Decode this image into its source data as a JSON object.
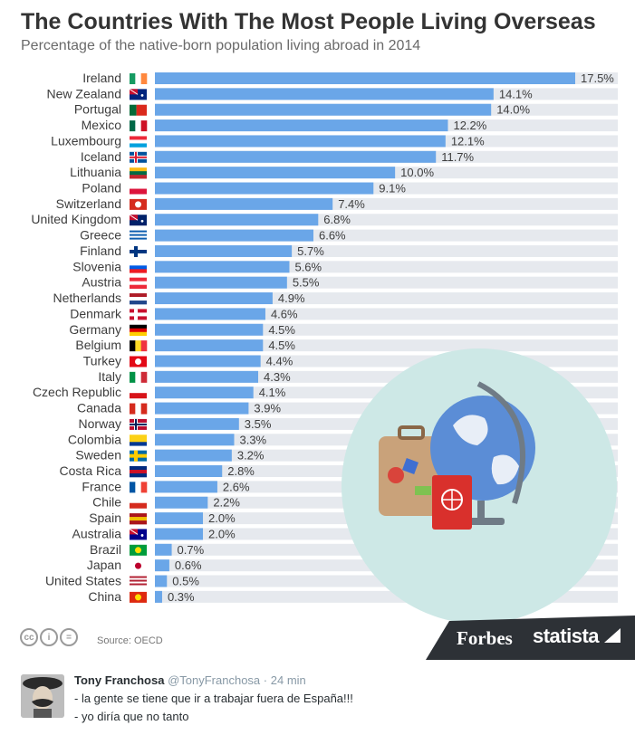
{
  "infographic": {
    "title": "The Countries With The Most People Living Overseas",
    "subtitle": "Percentage of the native-born population living abroad in 2014",
    "source": "Source: OECD",
    "brand_forbes": "Forbes",
    "brand_statista": "statista",
    "license_icons": [
      "cc",
      "i",
      "="
    ],
    "colors": {
      "bar": "#6aa6e8",
      "track": "#e6e9ee",
      "label": "#3d3d3d",
      "band": "#2d3136",
      "illustration_bg": "#cde8e6"
    }
  },
  "chart_data": {
    "type": "bar",
    "orientation": "horizontal",
    "categories": [
      "Ireland",
      "New Zealand",
      "Portugal",
      "Mexico",
      "Luxembourg",
      "Iceland",
      "Lithuania",
      "Poland",
      "Switzerland",
      "United Kingdom",
      "Greece",
      "Finland",
      "Slovenia",
      "Austria",
      "Netherlands",
      "Denmark",
      "Germany",
      "Belgium",
      "Turkey",
      "Italy",
      "Czech Republic",
      "Canada",
      "Norway",
      "Colombia",
      "Sweden",
      "Costa Rica",
      "France",
      "Chile",
      "Spain",
      "Australia",
      "Brazil",
      "Japan",
      "United States",
      "China"
    ],
    "values": [
      17.5,
      14.1,
      14.0,
      12.2,
      12.1,
      11.7,
      10.0,
      9.1,
      7.4,
      6.8,
      6.6,
      5.7,
      5.6,
      5.5,
      4.9,
      4.6,
      4.5,
      4.5,
      4.4,
      4.3,
      4.1,
      3.9,
      3.5,
      3.3,
      3.2,
      2.8,
      2.6,
      2.2,
      2.0,
      2.0,
      0.7,
      0.6,
      0.5,
      0.3
    ],
    "value_labels": [
      "17.5%",
      "14.1%",
      "14.0%",
      "12.2%",
      "12.1%",
      "11.7%",
      "10.0%",
      "9.1%",
      "7.4%",
      "6.8%",
      "6.6%",
      "5.7%",
      "5.6%",
      "5.5%",
      "4.9%",
      "4.6%",
      "4.5%",
      "4.5%",
      "4.4%",
      "4.3%",
      "4.1%",
      "3.9%",
      "3.5%",
      "3.3%",
      "3.2%",
      "2.8%",
      "2.6%",
      "2.2%",
      "2.0%",
      "2.0%",
      "0.7%",
      "0.6%",
      "0.5%",
      "0.3%"
    ],
    "flags": [
      "ireland-flag",
      "new-zealand-flag",
      "portugal-flag",
      "mexico-flag",
      "luxembourg-flag",
      "iceland-flag",
      "lithuania-flag",
      "poland-flag",
      "switzerland-flag",
      "united-kingdom-flag",
      "greece-flag",
      "finland-flag",
      "slovenia-flag",
      "austria-flag",
      "netherlands-flag",
      "denmark-flag",
      "germany-flag",
      "belgium-flag",
      "turkey-flag",
      "italy-flag",
      "czech-republic-flag",
      "canada-flag",
      "norway-flag",
      "colombia-flag",
      "sweden-flag",
      "costa-rica-flag",
      "france-flag",
      "chile-flag",
      "spain-flag",
      "australia-flag",
      "brazil-flag",
      "japan-flag",
      "united-states-flag",
      "china-flag"
    ],
    "xlim": [
      0,
      17.5
    ],
    "grid": false
  },
  "tweet": {
    "name": "Tony Franchosa",
    "handle": "@TonyFranchosa",
    "dot": "·",
    "time": "24 min",
    "lines": [
      "- la gente se tiene que ir a trabajar fuera de España!!!",
      "- yo diría que no tanto"
    ]
  }
}
